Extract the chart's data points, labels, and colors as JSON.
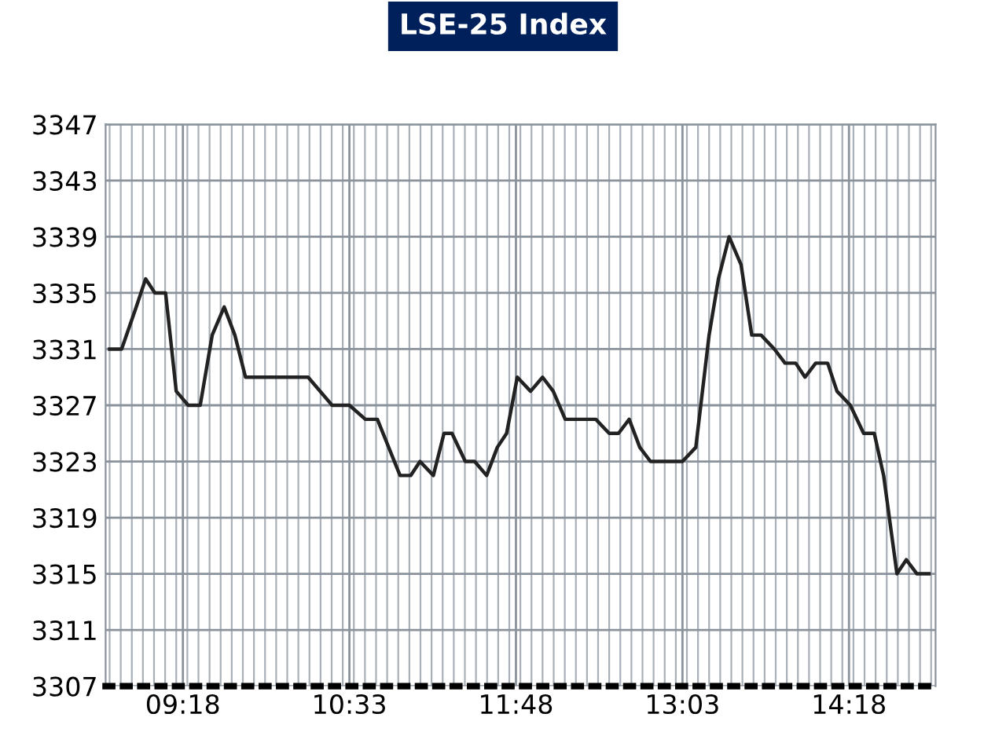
{
  "chart_data": {
    "type": "line",
    "title": "LSE-25 Index",
    "x": [
      8.75,
      8.84,
      8.95,
      9.02,
      9.09,
      9.17,
      9.25,
      9.34,
      9.43,
      9.52,
      9.61,
      9.69,
      9.77,
      10.24,
      10.42,
      10.55,
      10.67,
      10.76,
      10.93,
      11.01,
      11.08,
      11.18,
      11.26,
      11.32,
      11.42,
      11.49,
      11.58,
      11.66,
      11.73,
      11.81,
      11.91,
      12.0,
      12.08,
      12.17,
      12.4,
      12.5,
      12.57,
      12.65,
      12.73,
      12.81,
      13.05,
      13.15,
      13.25,
      13.32,
      13.4,
      13.49,
      13.57,
      13.64,
      13.74,
      13.82,
      13.9,
      13.97,
      14.05,
      14.14,
      14.21,
      14.31,
      14.41,
      14.49,
      14.56,
      14.66,
      14.73,
      14.81,
      14.9
    ],
    "series": [
      {
        "color": "#222222",
        "values": [
          3331,
          3331,
          3334,
          3336,
          3335,
          3335,
          3328,
          3327,
          3327,
          3332,
          3334,
          3332,
          3329,
          3329,
          3327,
          3327,
          3326,
          3326,
          3322,
          3322,
          3323,
          3322,
          3325,
          3325,
          3323,
          3323,
          3322,
          3324,
          3325,
          3329,
          3328,
          3329,
          3328,
          3326,
          3326,
          3325,
          3325,
          3326,
          3324,
          3323,
          3323,
          3324,
          3332,
          3336,
          3339,
          3337,
          3332,
          3332,
          3331,
          3330,
          3330,
          3329,
          3330,
          3330,
          3328,
          3327,
          3325,
          3325,
          3322,
          3315,
          3316,
          3315,
          3315
        ]
      }
    ],
    "xlim": [
      8.72,
      14.95
    ],
    "xticks": [
      {
        "value": 9.3,
        "label": "09:18"
      },
      {
        "value": 10.55,
        "label": "10:33"
      },
      {
        "value": 11.8,
        "label": "11:48"
      },
      {
        "value": 13.05,
        "label": "13:03"
      },
      {
        "value": 14.3,
        "label": "14:18"
      }
    ],
    "ylim": [
      3307,
      3347
    ],
    "yticks": [
      3307,
      3311,
      3315,
      3319,
      3323,
      3327,
      3331,
      3335,
      3339,
      3343,
      3347
    ],
    "grid": true,
    "legend": false,
    "marker": "none",
    "line_style": "solid"
  }
}
